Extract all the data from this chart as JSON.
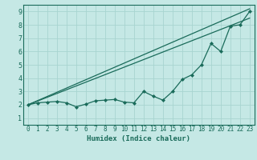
{
  "xlabel": "Humidex (Indice chaleur)",
  "xlim": [
    -0.5,
    23.5
  ],
  "ylim": [
    0.5,
    9.5
  ],
  "xticks": [
    0,
    1,
    2,
    3,
    4,
    5,
    6,
    7,
    8,
    9,
    10,
    11,
    12,
    13,
    14,
    15,
    16,
    17,
    18,
    19,
    20,
    21,
    22,
    23
  ],
  "yticks": [
    1,
    2,
    3,
    4,
    5,
    6,
    7,
    8,
    9
  ],
  "bg_color": "#c5e8e5",
  "line_color": "#1a6b5a",
  "grid_color": "#a8d4d0",
  "line1_x": [
    0,
    1,
    2,
    3,
    4,
    5,
    6,
    7,
    8,
    9,
    10,
    11,
    12,
    13,
    14,
    15,
    16,
    17,
    18,
    19,
    20,
    21,
    22,
    23
  ],
  "line1_y": [
    2.0,
    2.15,
    2.2,
    2.25,
    2.15,
    1.85,
    2.05,
    2.3,
    2.35,
    2.4,
    2.2,
    2.15,
    3.0,
    2.65,
    2.35,
    3.0,
    3.9,
    4.25,
    5.0,
    6.6,
    6.0,
    7.9,
    8.0,
    9.0
  ],
  "line2_x": [
    0,
    23
  ],
  "line2_y": [
    2.0,
    9.2
  ],
  "line3_x": [
    0,
    23
  ],
  "line3_y": [
    2.0,
    8.5
  ]
}
